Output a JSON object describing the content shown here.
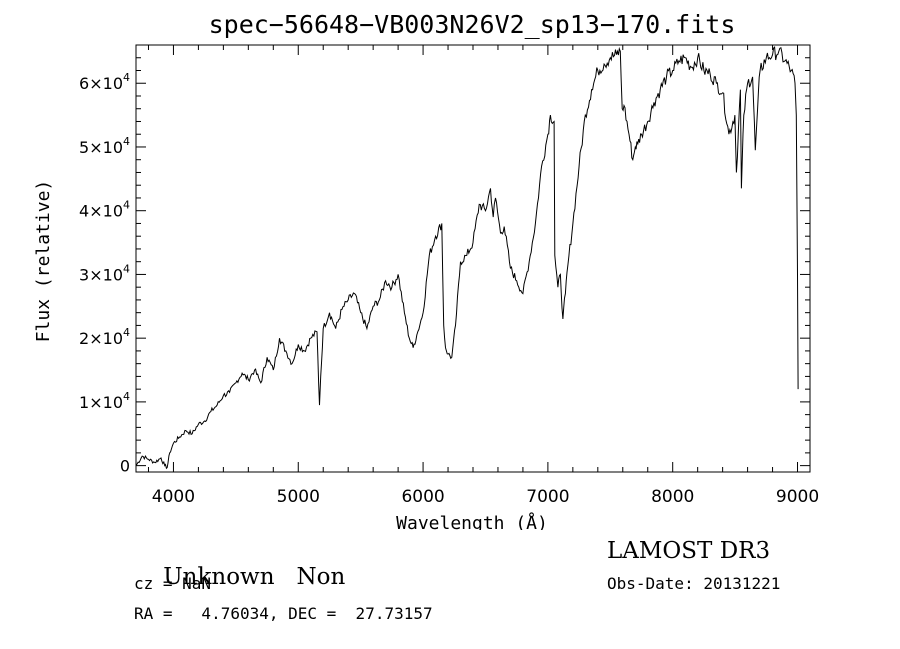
{
  "chart_data": {
    "type": "line",
    "title": "spec−56648−VB003N26V2_sp13−170.fits",
    "xlabel": "Wavelength (Å)",
    "ylabel": "Flux (relative)",
    "xlim": [
      3700,
      9100
    ],
    "ylim": [
      -1000,
      66000
    ],
    "xticks": [
      4000,
      5000,
      6000,
      7000,
      8000,
      9000
    ],
    "yticks": [
      {
        "value": 0,
        "mantissa": "0",
        "exp": ""
      },
      {
        "value": 10000,
        "mantissa": "1×10",
        "exp": "4"
      },
      {
        "value": 20000,
        "mantissa": "2×10",
        "exp": "4"
      },
      {
        "value": 30000,
        "mantissa": "3×10",
        "exp": "4"
      },
      {
        "value": 40000,
        "mantissa": "4×10",
        "exp": "4"
      },
      {
        "value": 50000,
        "mantissa": "5×10",
        "exp": "4"
      },
      {
        "value": 60000,
        "mantissa": "6×10",
        "exp": "4"
      }
    ],
    "series": [
      {
        "x": [
          3700,
          3750,
          3800,
          3850,
          3900,
          3930,
          3950,
          3970,
          4000,
          4050,
          4100,
          4150,
          4200,
          4250,
          4300,
          4350,
          4400,
          4450,
          4500,
          4550,
          4600,
          4650,
          4700,
          4750,
          4800,
          4850,
          4900,
          4950,
          5000,
          5050,
          5100,
          5150,
          5170,
          5180,
          5200,
          5250,
          5300,
          5350,
          5400,
          5450,
          5500,
          5550,
          5600,
          5650,
          5700,
          5750,
          5800,
          5850,
          5890,
          5920,
          5950,
          6000,
          6050,
          6100,
          6150,
          6165,
          6180,
          6200,
          6230,
          6260,
          6300,
          6350,
          6400,
          6450,
          6500,
          6540,
          6562,
          6580,
          6620,
          6650,
          6700,
          6750,
          6800,
          6850,
          6900,
          6950,
          7000,
          7020,
          7050,
          7055,
          7080,
          7100,
          7120,
          7140,
          7160,
          7200,
          7250,
          7300,
          7350,
          7400,
          7450,
          7500,
          7550,
          7580,
          7595,
          7610,
          7650,
          7680,
          7700,
          7720,
          7750,
          7800,
          7850,
          7900,
          7950,
          8000,
          8050,
          8100,
          8150,
          8200,
          8250,
          8300,
          8350,
          8400,
          8450,
          8498,
          8510,
          8542,
          8550,
          8570,
          8600,
          8640,
          8662,
          8680,
          8700,
          8750,
          8800,
          8850,
          8900,
          8950,
          8980,
          8990,
          9000,
          9005
        ],
        "y": [
          0,
          1500,
          1000,
          500,
          1200,
          0,
          -300,
          2000,
          3500,
          4500,
          5500,
          5000,
          6500,
          7000,
          8500,
          9500,
          11000,
          11500,
          13000,
          14500,
          13500,
          15000,
          13000,
          17000,
          15000,
          20000,
          18000,
          16000,
          19000,
          18000,
          20000,
          21000,
          9500,
          14000,
          21500,
          24000,
          21500,
          24500,
          26000,
          27000,
          24000,
          21500,
          25000,
          26000,
          29000,
          28000,
          30000,
          24000,
          20000,
          18500,
          20500,
          24000,
          33000,
          36000,
          38000,
          22000,
          18500,
          17500,
          17000,
          22000,
          32000,
          33000,
          35000,
          41000,
          40000,
          43500,
          39000,
          42000,
          36500,
          37500,
          31000,
          29000,
          27000,
          32000,
          38000,
          47000,
          52000,
          55000,
          54000,
          33000,
          28000,
          30000,
          23000,
          27000,
          31500,
          38000,
          47000,
          55000,
          59000,
          62000,
          63000,
          64000,
          64500,
          65000,
          56000,
          56500,
          52000,
          48000,
          50000,
          50500,
          52000,
          54000,
          57000,
          59000,
          61000,
          62000,
          63500,
          64000,
          62500,
          64000,
          62000,
          61500,
          60000,
          58500,
          52000,
          55000,
          46000,
          59000,
          43500,
          55000,
          60000,
          61000,
          49500,
          56000,
          62000,
          64000,
          64500,
          65000,
          63500,
          62000,
          60000,
          55000,
          30000,
          12000
        ]
      }
    ]
  },
  "info": {
    "left_line1_class": "Unknown",
    "left_line1_subclass": "Non",
    "left_line2": "cz = NaN",
    "left_line3": "RA =   4.76034, DEC =  27.73157",
    "right_line1": "LAMOST DR3",
    "right_line2": "Obs-Date: 20131221"
  }
}
